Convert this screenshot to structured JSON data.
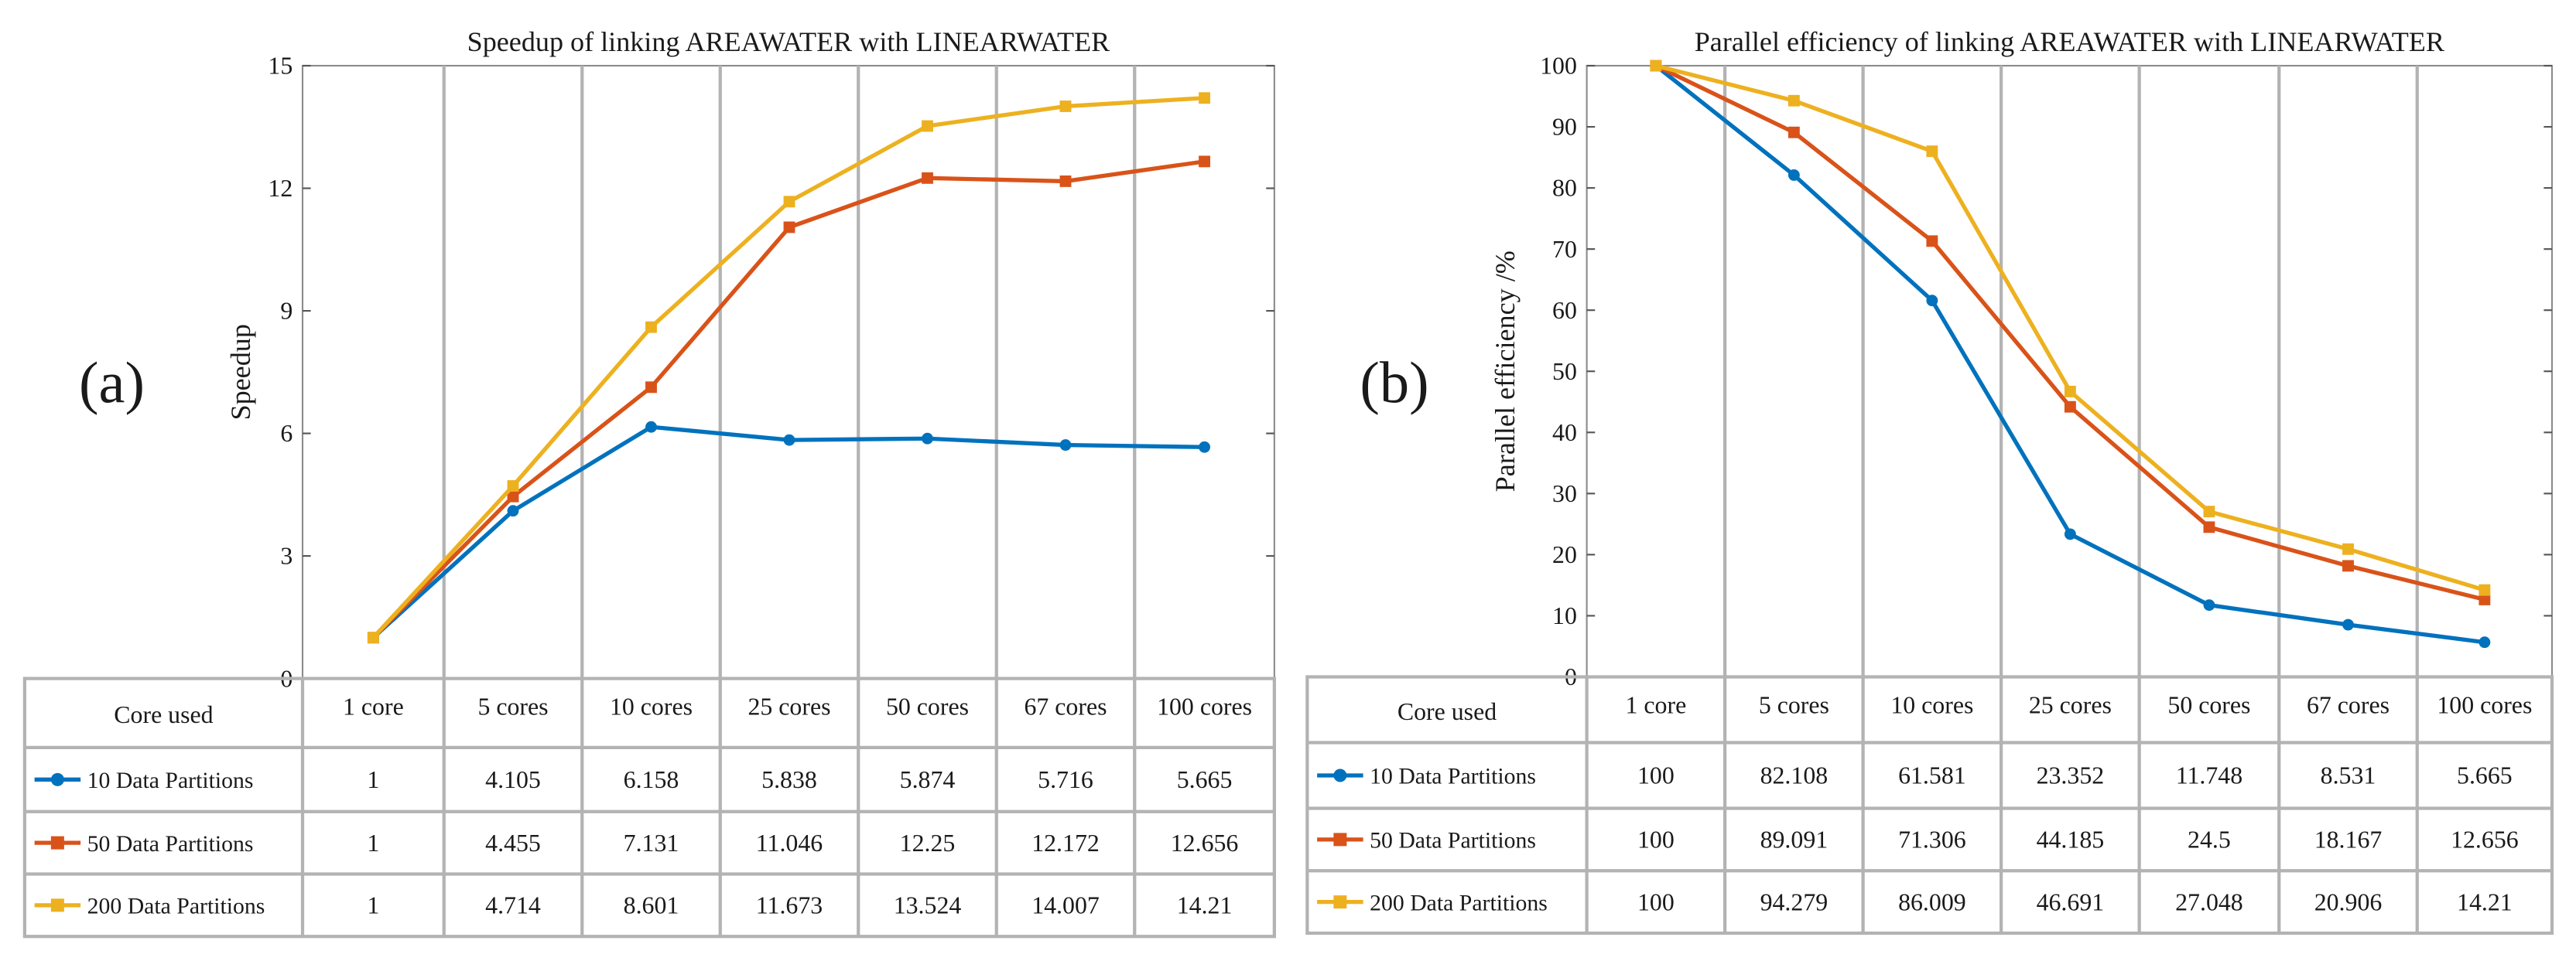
{
  "colors": {
    "series_10": "#0072BD",
    "series_50": "#D95319",
    "series_200": "#EDB120",
    "grid": "#b3b3b3",
    "axis": "#555555"
  },
  "chart_data": [
    {
      "panel_label": "(a)",
      "type": "line",
      "title": "Speedup of linking AREAWATER with LINEARWATER",
      "ylabel": "Speedup",
      "xlabel": "",
      "ylim": [
        0,
        15
      ],
      "yticks": [
        0,
        3,
        6,
        9,
        12,
        15
      ],
      "categories": [
        "1 core",
        "5 cores",
        "10 cores",
        "25 cores",
        "50 cores",
        "67 cores",
        "100 cores"
      ],
      "table_header": "Core used",
      "series": [
        {
          "name": "10 Data Partitions",
          "color_key": "series_10",
          "marker": "circle",
          "values": [
            1,
            4.105,
            6.158,
            5.838,
            5.874,
            5.716,
            5.665
          ],
          "labels": [
            "1",
            "4.105",
            "6.158",
            "5.838",
            "5.874",
            "5.716",
            "5.665"
          ]
        },
        {
          "name": "50 Data Partitions",
          "color_key": "series_50",
          "marker": "square",
          "values": [
            1,
            4.455,
            7.131,
            11.046,
            12.25,
            12.172,
            12.656
          ],
          "labels": [
            "1",
            "4.455",
            "7.131",
            "11.046",
            "12.25",
            "12.172",
            "12.656"
          ]
        },
        {
          "name": "200 Data Partitions",
          "color_key": "series_200",
          "marker": "square",
          "values": [
            1,
            4.714,
            8.601,
            11.673,
            13.524,
            14.007,
            14.21
          ],
          "labels": [
            "1",
            "4.714",
            "8.601",
            "11.673",
            "13.524",
            "14.007",
            "14.21"
          ]
        }
      ]
    },
    {
      "panel_label": "(b)",
      "type": "line",
      "title": "Parallel efficiency of linking AREAWATER with LINEARWATER",
      "ylabel": "Parallel efficiency /%",
      "xlabel": "",
      "ylim": [
        0,
        100
      ],
      "yticks": [
        0,
        10,
        20,
        30,
        40,
        50,
        60,
        70,
        80,
        90,
        100
      ],
      "categories": [
        "1 core",
        "5 cores",
        "10 cores",
        "25 cores",
        "50 cores",
        "67 cores",
        "100 cores"
      ],
      "table_header": "Core used",
      "series": [
        {
          "name": "10 Data Partitions",
          "color_key": "series_10",
          "marker": "circle",
          "values": [
            100,
            82.108,
            61.581,
            23.352,
            11.748,
            8.531,
            5.665
          ],
          "labels": [
            "100",
            "82.108",
            "61.581",
            "23.352",
            "11.748",
            "8.531",
            "5.665"
          ]
        },
        {
          "name": "50 Data Partitions",
          "color_key": "series_50",
          "marker": "square",
          "values": [
            100,
            89.091,
            71.306,
            44.185,
            24.5,
            18.167,
            12.656
          ],
          "labels": [
            "100",
            "89.091",
            "71.306",
            "44.185",
            "24.5",
            "18.167",
            "12.656"
          ]
        },
        {
          "name": "200 Data Partitions",
          "color_key": "series_200",
          "marker": "square",
          "values": [
            100,
            94.279,
            86.009,
            46.691,
            27.048,
            20.906,
            14.21
          ],
          "labels": [
            "100",
            "94.279",
            "86.009",
            "46.691",
            "27.048",
            "20.906",
            "14.21"
          ]
        }
      ]
    }
  ]
}
